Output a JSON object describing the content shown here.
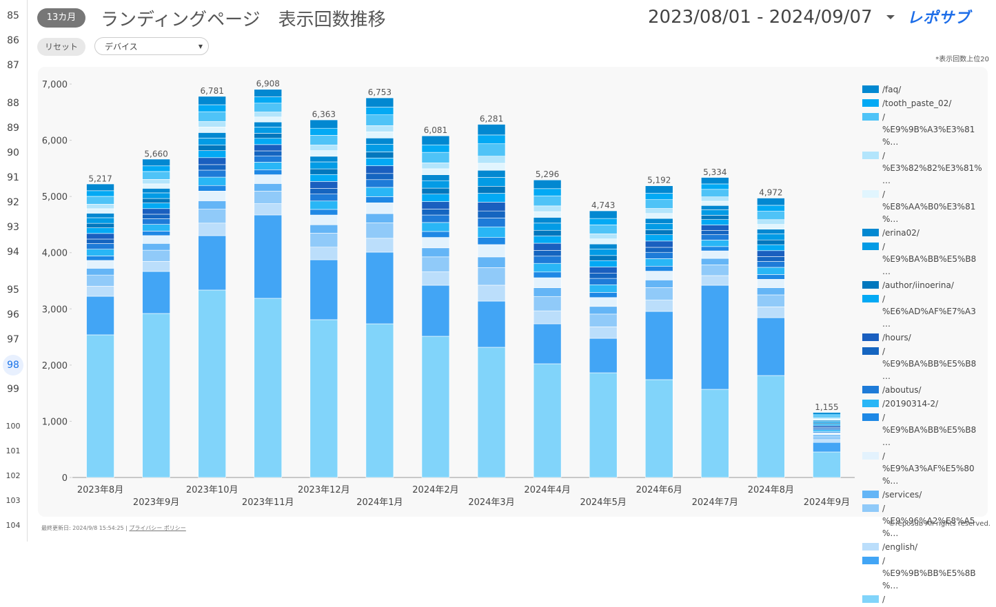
{
  "row_numbers": [
    "85",
    "86",
    "87",
    "88",
    "89",
    "90",
    "91",
    "92",
    "93",
    "94",
    "95",
    "96",
    "97",
    "98",
    "99",
    "100",
    "101",
    "102",
    "103",
    "104"
  ],
  "header": {
    "badge": "13カ月",
    "title": "ランディングページ　表示回数推移",
    "date_range": "2023/08/01 - 2024/09/07",
    "logo": "レポサブ"
  },
  "controls": {
    "reset": "リセット",
    "dropdown": "デバイス",
    "note": "*表示回数上位20"
  },
  "footer": {
    "updated": "最終更新日: 2024/9/8 15:54:25",
    "privacy": "プライバシー ポリシー",
    "copyright": "©reposub All rights reserved."
  },
  "chart_data": {
    "type": "stacked_bar",
    "categories": [
      "2023年8月",
      "2023年9月",
      "2023年10月",
      "2023年11月",
      "2023年12月",
      "2024年1月",
      "2024年2月",
      "2024年3月",
      "2024年4月",
      "2024年5月",
      "2024年6月",
      "2024年7月",
      "2024年8月",
      "2024年9月"
    ],
    "ylim": [
      0,
      7000
    ],
    "yticks": [
      0,
      {
        "value": 1000,
        "label": "1,000"
      },
      {
        "value": 2000,
        "label": "2,000"
      },
      {
        "value": 3000,
        "label": "3,000"
      },
      {
        "value": 4000,
        "label": "4,000"
      },
      {
        "value": 5000,
        "label": "5,000"
      },
      {
        "value": 6000,
        "label": "6,000"
      },
      {
        "value": 7000,
        "label": "7,000"
      }
    ],
    "totals": [
      5217,
      5660,
      6781,
      6908,
      6363,
      6753,
      6081,
      6281,
      5296,
      4743,
      5192,
      5334,
      4972,
      1155
    ],
    "total_labels": [
      "5,217",
      "5,660",
      "6,781",
      "6,908",
      "6,363",
      "6,753",
      "6,081",
      "6,281",
      "5,296",
      "4,743",
      "5,192",
      "5,334",
      "4,972",
      "1,155"
    ],
    "series": [
      {
        "name": "/",
        "color": "#81d4fa",
        "values": [
          2538,
          2918,
          3335,
          3188,
          2808,
          2734,
          2513,
          2317,
          2023,
          1863,
          1741,
          1569,
          1814,
          454
        ]
      },
      {
        "name": "/ %E9%9B%BB%E5%8B%…",
        "color": "#42a5f5",
        "values": [
          686,
          748,
          968,
          1483,
          1066,
          1275,
          907,
          821,
          711,
          613,
          1214,
          1851,
          1030,
          171
        ]
      },
      {
        "name": "/english/",
        "color": "#bbdefb",
        "values": [
          179,
          179,
          223,
          201,
          224,
          247,
          239,
          283,
          231,
          204,
          201,
          172,
          192,
          48
        ]
      },
      {
        "name": "/ %E9%96%A2%E8%A5%…",
        "color": "#90caf9",
        "values": [
          199,
          199,
          248,
          224,
          249,
          274,
          266,
          314,
          256,
          227,
          224,
          191,
          213,
          53
        ]
      },
      {
        "name": "/services/",
        "color": "#64b5f6",
        "values": [
          120,
          120,
          149,
          134,
          149,
          165,
          160,
          189,
          154,
          136,
          134,
          115,
          128,
          32
        ]
      },
      {
        "name": "/ %E9%A3%AF%E5%80%…",
        "color": "#e3f2fd",
        "values": [
          140,
          140,
          173,
          157,
          174,
          192,
          186,
          220,
          179,
          159,
          157,
          134,
          149,
          37
        ]
      },
      {
        "name": "/ %E9%BA%BB%E5%B8…",
        "color": "#1e88e5",
        "values": [
          80,
          80,
          99,
          89,
          100,
          110,
          106,
          126,
          102,
          91,
          89,
          77,
          85,
          21
        ]
      },
      {
        "name": "/20190314-2/",
        "color": "#29b6f6",
        "values": [
          120,
          120,
          149,
          134,
          149,
          165,
          160,
          189,
          154,
          136,
          134,
          115,
          128,
          32
        ]
      },
      {
        "name": "/aboutus/",
        "color": "#1e7bd8",
        "values": [
          100,
          100,
          124,
          112,
          124,
          137,
          133,
          157,
          128,
          113,
          112,
          96,
          106,
          27
        ]
      },
      {
        "name": "/ %E9%BA%BB%E5%B8…",
        "color": "#1565c0",
        "values": [
          80,
          80,
          99,
          89,
          100,
          110,
          106,
          126,
          102,
          91,
          89,
          77,
          85,
          21
        ]
      },
      {
        "name": "/hours/",
        "color": "#1a5fbf",
        "values": [
          100,
          100,
          124,
          112,
          124,
          137,
          133,
          157,
          128,
          113,
          112,
          96,
          106,
          27
        ]
      },
      {
        "name": "/ %E6%AD%AF%E7%A3…",
        "color": "#03a9f4",
        "values": [
          100,
          100,
          124,
          112,
          124,
          137,
          133,
          157,
          128,
          113,
          112,
          96,
          106,
          27
        ]
      },
      {
        "name": "/author/iinoerina/",
        "color": "#0277bd",
        "values": [
          80,
          80,
          99,
          89,
          100,
          110,
          106,
          126,
          102,
          91,
          89,
          77,
          85,
          21
        ]
      },
      {
        "name": "/ %E9%BA%BB%E5%B8…",
        "color": "#039be5",
        "values": [
          100,
          100,
          124,
          112,
          124,
          137,
          133,
          157,
          128,
          113,
          112,
          96,
          106,
          27
        ]
      },
      {
        "name": "/erina02/",
        "color": "#0288d1",
        "values": [
          80,
          80,
          99,
          89,
          100,
          110,
          106,
          126,
          102,
          91,
          89,
          77,
          85,
          21
        ]
      },
      {
        "name": "/ %E8%AA%B0%E3%81%…",
        "color": "#e1f5fe",
        "values": [
          80,
          80,
          99,
          89,
          100,
          110,
          106,
          126,
          102,
          91,
          89,
          77,
          85,
          21
        ]
      },
      {
        "name": "/ %E3%82%82%E3%81%…",
        "color": "#b3e5fc",
        "values": [
          80,
          80,
          99,
          89,
          100,
          110,
          106,
          126,
          102,
          91,
          89,
          77,
          85,
          21
        ]
      },
      {
        "name": "/ %E9%9B%A3%E3%81%…",
        "color": "#4fc3f7",
        "values": [
          140,
          140,
          173,
          157,
          174,
          192,
          186,
          220,
          179,
          159,
          157,
          134,
          149,
          37
        ]
      },
      {
        "name": "/tooth_paste_02/",
        "color": "#03a9f4",
        "values": [
          100,
          100,
          124,
          112,
          124,
          137,
          133,
          157,
          128,
          113,
          112,
          96,
          106,
          27
        ]
      },
      {
        "name": "/faq/",
        "color": "#0288d1",
        "values": [
          120,
          120,
          149,
          134,
          149,
          165,
          160,
          189,
          154,
          136,
          134,
          115,
          128,
          32
        ]
      }
    ]
  }
}
